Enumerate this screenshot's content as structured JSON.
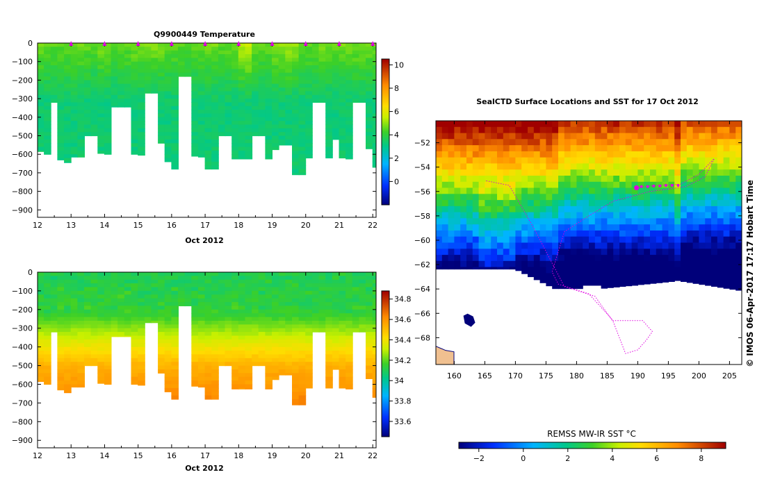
{
  "chart_data": [
    {
      "id": "temperature_section",
      "type": "heatmap",
      "title": "Q9900449  Temperature",
      "xlabel": "Oct 2012",
      "ylabel": "",
      "xlim": [
        12,
        22.1
      ],
      "ylim": [
        -940,
        0
      ],
      "x_ticks": [
        "12",
        "13",
        "14",
        "15",
        "16",
        "17",
        "18",
        "19",
        "20",
        "21",
        "22"
      ],
      "y_ticks": [
        "0",
        "−100",
        "−200",
        "−300",
        "−400",
        "−500",
        "−600",
        "−700",
        "−800",
        "−900"
      ],
      "colorbar": {
        "min": -2,
        "max": 10.5,
        "ticks": [
          "0",
          "2",
          "4",
          "6",
          "8",
          "10"
        ]
      },
      "profile_times": [
        12.0,
        12.2,
        12.4,
        12.6,
        12.8,
        13.0,
        13.2,
        13.4,
        13.6,
        13.8,
        14.0,
        14.2,
        14.4,
        14.6,
        14.8,
        15.0,
        15.2,
        15.4,
        15.6,
        15.8,
        16.0,
        16.2,
        16.4,
        16.6,
        16.8,
        17.0,
        17.2,
        17.4,
        17.6,
        17.8,
        18.0,
        18.2,
        18.4,
        18.6,
        18.8,
        19.0,
        19.2,
        19.4,
        19.6,
        19.8,
        20.0,
        20.2,
        20.4,
        20.6,
        20.8,
        21.0,
        21.2,
        21.4,
        21.6,
        21.8,
        22.0
      ],
      "profile_max_depth": [
        585,
        600,
        320,
        630,
        645,
        615,
        615,
        500,
        500,
        595,
        600,
        345,
        345,
        345,
        600,
        605,
        270,
        270,
        540,
        640,
        680,
        180,
        180,
        610,
        615,
        680,
        680,
        500,
        500,
        625,
        625,
        625,
        500,
        500,
        625,
        575,
        550,
        550,
        710,
        710,
        620,
        320,
        320,
        620,
        520,
        620,
        625,
        320,
        320,
        570,
        670
      ],
      "surface_temp": [
        4.8,
        4.6,
        4.5,
        4.5,
        4.6,
        4.8,
        4.8,
        4.6,
        4.4,
        4.8,
        4.8,
        4.3,
        4.5,
        4.6,
        4.8,
        4.8,
        4.9,
        4.9,
        4.8,
        4.6,
        4.6,
        4.6,
        4.5,
        4.6,
        4.6,
        4.8,
        4.8,
        4.6,
        4.6,
        4.8,
        5.4,
        5.6,
        4.6,
        4.6,
        4.6,
        5.0,
        5.0,
        5.2,
        5.0,
        4.6,
        4.6,
        4.6,
        4.8,
        4.8,
        4.6,
        4.8,
        4.7,
        4.8,
        4.8,
        4.7,
        4.7
      ],
      "deep_temp": 3.3,
      "surface_markers": [
        "13",
        "14",
        "15",
        "16",
        "17",
        "18",
        "19",
        "20",
        "21",
        "22"
      ]
    },
    {
      "id": "salinity_section",
      "type": "heatmap",
      "title": "",
      "xlabel": "Oct 2012",
      "ylabel": "",
      "xlim": [
        12,
        22.1
      ],
      "ylim": [
        -940,
        0
      ],
      "x_ticks": [
        "12",
        "13",
        "14",
        "15",
        "16",
        "17",
        "18",
        "19",
        "20",
        "21",
        "22"
      ],
      "y_ticks": [
        "0",
        "−100",
        "−200",
        "−300",
        "−400",
        "−500",
        "−600",
        "−700",
        "−800",
        "−900"
      ],
      "colorbar": {
        "min": 33.45,
        "max": 34.88,
        "ticks": [
          "33.6",
          "33.8",
          "34",
          "34.2",
          "34.4",
          "34.6",
          "34.8"
        ]
      },
      "surface_salinity": 34.1,
      "deep_salinity": 34.62
    },
    {
      "id": "sst_map",
      "type": "heatmap",
      "title": "SealCTD Surface Locations and SST for 17 Oct 2012",
      "xlabel": "",
      "ylabel": "",
      "xlim": [
        157,
        207
      ],
      "ylim": [
        -70.2,
        -50.2
      ],
      "x_ticks": [
        "160",
        "165",
        "170",
        "175",
        "180",
        "185",
        "190",
        "195",
        "200",
        "205"
      ],
      "y_ticks": [
        "−52",
        "−54",
        "−56",
        "−58",
        "−60",
        "−62",
        "−64",
        "−66",
        "−68"
      ],
      "colorbar": {
        "label": "REMSS MW-IR SST °C",
        "min": -2.9,
        "max": 9.1,
        "ticks": [
          "−2",
          "0",
          "2",
          "4",
          "6",
          "8"
        ]
      },
      "surface_locations": [
        {
          "lon": 189.8,
          "lat": -55.7
        },
        {
          "lon": 190.6,
          "lat": -55.6
        },
        {
          "lon": 191.6,
          "lat": -55.6
        },
        {
          "lon": 192.6,
          "lat": -55.55
        },
        {
          "lon": 193.6,
          "lat": -55.55
        },
        {
          "lon": 194.6,
          "lat": -55.5
        },
        {
          "lon": 195.6,
          "lat": -55.5
        },
        {
          "lon": 196.6,
          "lat": -55.5
        }
      ]
    }
  ],
  "credit": "© IMOS 06-Apr-2017 17:17 Hobart Time"
}
